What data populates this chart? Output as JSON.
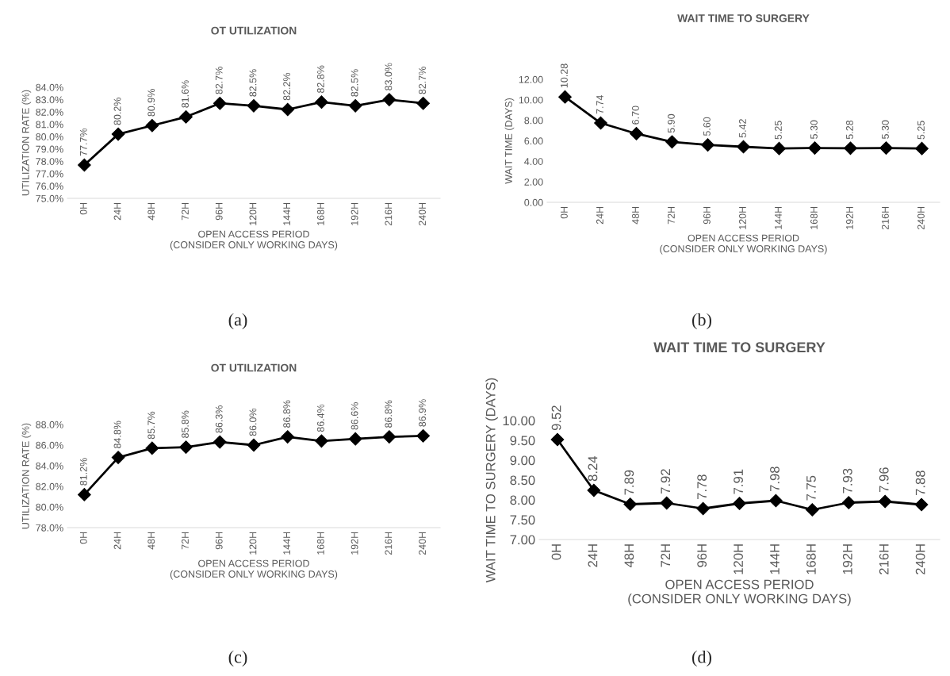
{
  "chart_data": [
    {
      "type": "line",
      "title": "OT UTILIZATION",
      "xlabel": "OPEN ACCESS PERIOD\n(CONSIDER ONLY WORKING DAYS)",
      "ylabel": "UTILIZATION RATE (%)",
      "categories": [
        "0H",
        "24H",
        "48H",
        "72H",
        "96H",
        "120H",
        "144H",
        "168H",
        "192H",
        "216H",
        "240H"
      ],
      "color": "#000000",
      "marker": "diamond",
      "grid": false,
      "legend": false,
      "values": [
        77.7,
        80.2,
        80.9,
        81.6,
        82.7,
        82.5,
        82.2,
        82.8,
        82.5,
        83.0,
        82.7
      ],
      "value_labels": [
        "77.7%",
        "80.2%",
        "80.9%",
        "81.6%",
        "82.7%",
        "82.5%",
        "82.2%",
        "82.8%",
        "82.5%",
        "83.0%",
        "82.7%"
      ],
      "ylim": [
        75,
        84
      ],
      "yticks": [
        {
          "value": 75,
          "label": "75.0%"
        },
        {
          "value": 76,
          "label": "76.0%"
        },
        {
          "value": 77,
          "label": "77.0%"
        },
        {
          "value": 78,
          "label": "78.0%"
        },
        {
          "value": 79,
          "label": "79.0%"
        },
        {
          "value": 80,
          "label": "80.0%"
        },
        {
          "value": 81,
          "label": "81.0%"
        },
        {
          "value": 82,
          "label": "82.0%"
        },
        {
          "value": 83,
          "label": "83.0%"
        },
        {
          "value": 84,
          "label": "84.0%"
        }
      ],
      "annotations": [
        "(a)"
      ]
    },
    {
      "type": "line",
      "title": "WAIT TIME TO SURGERY",
      "xlabel": "OPEN ACCESS PERIOD\n(CONSIDER ONLY WORKING DAYS)",
      "ylabel": "WAIT TIME (DAYS)",
      "categories": [
        "0H",
        "24H",
        "48H",
        "72H",
        "96H",
        "120H",
        "144H",
        "168H",
        "192H",
        "216H",
        "240H"
      ],
      "color": "#000000",
      "marker": "diamond",
      "grid": false,
      "legend": false,
      "values": [
        10.28,
        7.74,
        6.7,
        5.9,
        5.6,
        5.42,
        5.25,
        5.3,
        5.28,
        5.3,
        5.25
      ],
      "value_labels": [
        "10.28",
        "7.74",
        "6.70",
        "5.90",
        "5.60",
        "5.42",
        "5.25",
        "5.30",
        "5.28",
        "5.30",
        "5.25"
      ],
      "ylim": [
        0,
        12
      ],
      "yticks": [
        {
          "value": 0,
          "label": "0.00"
        },
        {
          "value": 2,
          "label": "2.00"
        },
        {
          "value": 4,
          "label": "4.00"
        },
        {
          "value": 6,
          "label": "6.00"
        },
        {
          "value": 8,
          "label": "8.00"
        },
        {
          "value": 10,
          "label": "10.00"
        },
        {
          "value": 12,
          "label": "12.00"
        }
      ],
      "annotations": [
        "(b)"
      ]
    },
    {
      "type": "line",
      "title": "OT UTILIZATION",
      "xlabel": "OPEN ACCESS PERIOD\n(CONSIDER ONLY WORKING DAYS)",
      "ylabel": "UTILIZATION RATE (%)",
      "categories": [
        "0H",
        "24H",
        "48H",
        "72H",
        "96H",
        "120H",
        "144H",
        "168H",
        "192H",
        "216H",
        "240H"
      ],
      "color": "#000000",
      "marker": "diamond",
      "grid": false,
      "legend": false,
      "values": [
        81.2,
        84.8,
        85.7,
        85.8,
        86.3,
        86.0,
        86.8,
        86.4,
        86.6,
        86.8,
        86.9
      ],
      "value_labels": [
        "81.2%",
        "84.8%",
        "85.7%",
        "85.8%",
        "86.3%",
        "86.0%",
        "86.8%",
        "86.4%",
        "86.6%",
        "86.8%",
        "86.9%"
      ],
      "ylim": [
        78,
        88
      ],
      "yticks": [
        {
          "value": 78,
          "label": "78.0%"
        },
        {
          "value": 80,
          "label": "80.0%"
        },
        {
          "value": 82,
          "label": "82.0%"
        },
        {
          "value": 84,
          "label": "84.0%"
        },
        {
          "value": 86,
          "label": "86.0%"
        },
        {
          "value": 88,
          "label": "88.0%"
        }
      ],
      "annotations": [
        "(c)"
      ]
    },
    {
      "type": "line",
      "title": "WAIT TIME TO SURGERY",
      "xlabel": "OPEN ACCESS PERIOD\n(CONSIDER ONLY WORKING DAYS)",
      "ylabel": "WAIT TIME TO SURGERY (DAYS)",
      "categories": [
        "0H",
        "24H",
        "48H",
        "72H",
        "96H",
        "120H",
        "144H",
        "168H",
        "192H",
        "216H",
        "240H"
      ],
      "color": "#000000",
      "marker": "diamond",
      "grid": false,
      "legend": false,
      "values": [
        9.52,
        8.24,
        7.89,
        7.92,
        7.78,
        7.91,
        7.98,
        7.75,
        7.93,
        7.96,
        7.88
      ],
      "value_labels": [
        "9.52",
        "8.24",
        "7.89",
        "7.92",
        "7.78",
        "7.91",
        "7.98",
        "7.75",
        "7.93",
        "7.96",
        "7.88"
      ],
      "ylim": [
        7,
        10
      ],
      "yticks": [
        {
          "value": 7,
          "label": "7.00"
        },
        {
          "value": 7.5,
          "label": "7.50"
        },
        {
          "value": 8,
          "label": "8.00"
        },
        {
          "value": 8.5,
          "label": "8.50"
        },
        {
          "value": 9,
          "label": "9.00"
        },
        {
          "value": 9.5,
          "label": "9.50"
        },
        {
          "value": 10,
          "label": "10.00"
        }
      ],
      "annotations": [
        "(d)"
      ]
    }
  ]
}
